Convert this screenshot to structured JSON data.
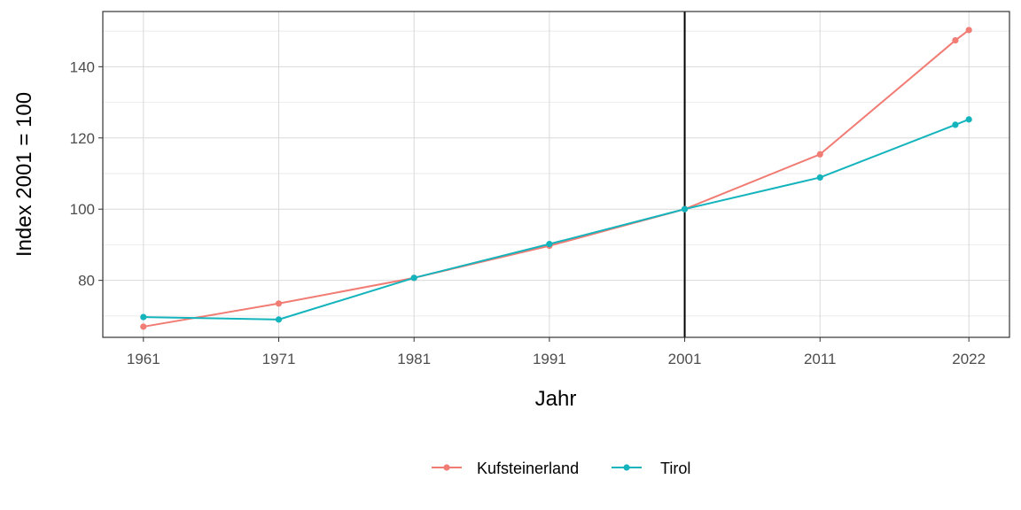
{
  "chart_data": {
    "type": "line",
    "xlabel": "Jahr",
    "ylabel": "Index 2001 = 100",
    "x_ticks": [
      1961,
      1971,
      1981,
      1991,
      2001,
      2011,
      2022
    ],
    "y_ticks": [
      80,
      100,
      120,
      140
    ],
    "xlim": [
      1958,
      2025
    ],
    "ylim": [
      64,
      155.5
    ],
    "reference_line_x": 2001,
    "grid": true,
    "legend_position": "bottom",
    "series": [
      {
        "name": "Kufsteinerland",
        "color": "#f07c74",
        "x": [
          1961,
          1971,
          1981,
          1991,
          2001,
          2011,
          2021,
          2022
        ],
        "y": [
          67.0,
          73.5,
          80.7,
          89.7,
          100.0,
          115.4,
          147.4,
          150.3
        ]
      },
      {
        "name": "Tirol",
        "color": "#14b4bd",
        "x": [
          1961,
          1971,
          1981,
          1991,
          2001,
          2011,
          2021,
          2022
        ],
        "y": [
          69.7,
          69.0,
          80.7,
          90.2,
          100.0,
          108.9,
          123.7,
          125.2
        ]
      }
    ]
  }
}
